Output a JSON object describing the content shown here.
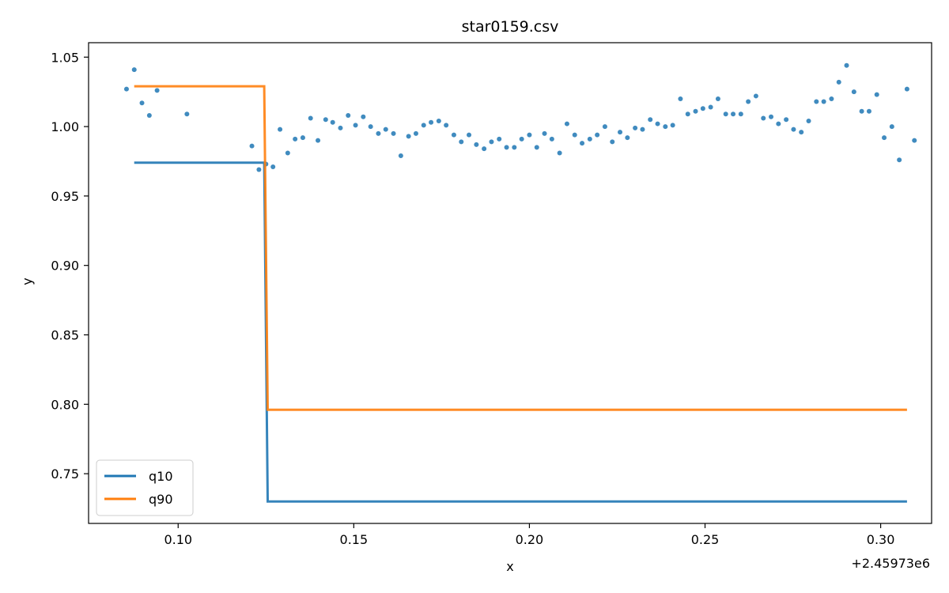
{
  "chart_data": {
    "type": "line",
    "title": "star0159.csv",
    "xlabel": "x",
    "ylabel": "y",
    "x_offset_label": "+2.45973e6",
    "xlim": [
      0.0745,
      0.3145
    ],
    "ylim": [
      0.7142,
      1.0604
    ],
    "xticks": [
      0.1,
      0.15,
      0.2,
      0.25,
      0.3
    ],
    "xtick_labels": [
      "0.10",
      "0.15",
      "0.20",
      "0.25",
      "0.30"
    ],
    "yticks": [
      0.75,
      0.8,
      0.85,
      0.9,
      0.95,
      1.0,
      1.05
    ],
    "ytick_labels": [
      "0.75",
      "0.80",
      "0.85",
      "0.90",
      "0.95",
      "1.00",
      "1.05"
    ],
    "grid": false,
    "legend_position": "lower-left",
    "scatter": {
      "color": "#1f77b4",
      "points": [
        [
          0.0853,
          1.027
        ],
        [
          0.0875,
          1.041
        ],
        [
          0.0897,
          1.017
        ],
        [
          0.0918,
          1.008
        ],
        [
          0.094,
          1.026
        ],
        [
          0.1025,
          1.009
        ],
        [
          0.121,
          0.986
        ],
        [
          0.123,
          0.969
        ],
        [
          0.125,
          0.973
        ],
        [
          0.127,
          0.971
        ],
        [
          0.129,
          0.998
        ],
        [
          0.1312,
          0.981
        ],
        [
          0.1333,
          0.991
        ],
        [
          0.1355,
          0.992
        ],
        [
          0.1377,
          1.006
        ],
        [
          0.1398,
          0.99
        ],
        [
          0.142,
          1.005
        ],
        [
          0.144,
          1.003
        ],
        [
          0.1462,
          0.999
        ],
        [
          0.1484,
          1.008
        ],
        [
          0.1505,
          1.001
        ],
        [
          0.1527,
          1.007
        ],
        [
          0.1548,
          1.0
        ],
        [
          0.157,
          0.995
        ],
        [
          0.1591,
          0.998
        ],
        [
          0.1613,
          0.995
        ],
        [
          0.1634,
          0.979
        ],
        [
          0.1656,
          0.993
        ],
        [
          0.1677,
          0.995
        ],
        [
          0.1699,
          1.001
        ],
        [
          0.172,
          1.003
        ],
        [
          0.1742,
          1.004
        ],
        [
          0.1763,
          1.001
        ],
        [
          0.1785,
          0.994
        ],
        [
          0.1806,
          0.989
        ],
        [
          0.1828,
          0.994
        ],
        [
          0.1849,
          0.987
        ],
        [
          0.1871,
          0.984
        ],
        [
          0.1892,
          0.989
        ],
        [
          0.1914,
          0.991
        ],
        [
          0.1935,
          0.985
        ],
        [
          0.1957,
          0.985
        ],
        [
          0.1978,
          0.991
        ],
        [
          0.2,
          0.994
        ],
        [
          0.2021,
          0.985
        ],
        [
          0.2043,
          0.995
        ],
        [
          0.2064,
          0.991
        ],
        [
          0.2086,
          0.981
        ],
        [
          0.2107,
          1.002
        ],
        [
          0.2129,
          0.994
        ],
        [
          0.215,
          0.988
        ],
        [
          0.2172,
          0.991
        ],
        [
          0.2193,
          0.994
        ],
        [
          0.2215,
          1.0
        ],
        [
          0.2236,
          0.989
        ],
        [
          0.2258,
          0.996
        ],
        [
          0.2279,
          0.992
        ],
        [
          0.2301,
          0.999
        ],
        [
          0.2322,
          0.998
        ],
        [
          0.2344,
          1.005
        ],
        [
          0.2365,
          1.002
        ],
        [
          0.2387,
          1.0
        ],
        [
          0.2408,
          1.001
        ],
        [
          0.243,
          1.02
        ],
        [
          0.2451,
          1.009
        ],
        [
          0.2473,
          1.011
        ],
        [
          0.2494,
          1.013
        ],
        [
          0.2516,
          1.014
        ],
        [
          0.2537,
          1.02
        ],
        [
          0.2559,
          1.009
        ],
        [
          0.258,
          1.009
        ],
        [
          0.2602,
          1.009
        ],
        [
          0.2623,
          1.018
        ],
        [
          0.2645,
          1.022
        ],
        [
          0.2666,
          1.006
        ],
        [
          0.2688,
          1.007
        ],
        [
          0.2709,
          1.002
        ],
        [
          0.2731,
          1.005
        ],
        [
          0.2752,
          0.998
        ],
        [
          0.2774,
          0.996
        ],
        [
          0.2795,
          1.004
        ],
        [
          0.2817,
          1.018
        ],
        [
          0.2838,
          1.018
        ],
        [
          0.286,
          1.02
        ],
        [
          0.2881,
          1.032
        ],
        [
          0.2903,
          1.044
        ],
        [
          0.2924,
          1.025
        ],
        [
          0.2946,
          1.011
        ],
        [
          0.2967,
          1.011
        ],
        [
          0.2989,
          1.023
        ],
        [
          0.301,
          0.992
        ],
        [
          0.3032,
          1.0
        ],
        [
          0.3053,
          0.976
        ],
        [
          0.3075,
          1.027
        ],
        [
          0.3096,
          0.99
        ]
      ]
    },
    "series": [
      {
        "name": "q10",
        "color": "#1f77b4",
        "points": [
          [
            0.0875,
            0.974
          ],
          [
            0.1245,
            0.974
          ],
          [
            0.1255,
            0.73
          ],
          [
            0.3075,
            0.73
          ]
        ]
      },
      {
        "name": "q90",
        "color": "#ff7f0e",
        "points": [
          [
            0.0875,
            1.029
          ],
          [
            0.1245,
            1.029
          ],
          [
            0.1255,
            0.796
          ],
          [
            0.3075,
            0.796
          ]
        ]
      }
    ]
  }
}
